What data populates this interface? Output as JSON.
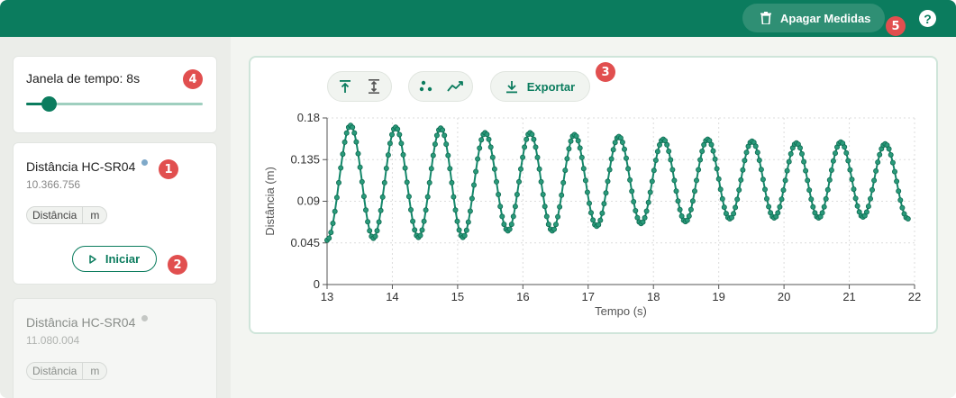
{
  "topbar": {
    "clear_label": "Apagar Medidas",
    "help_label": "?",
    "accent": "#0b7c5e"
  },
  "badges": [
    "1",
    "2",
    "3",
    "4",
    "5"
  ],
  "time_window": {
    "label": "Janela de tempo: 8s",
    "slider_fraction": 0.13
  },
  "sensors": [
    {
      "name": "Distância HC-SR04",
      "id": "10.366.756",
      "quantity": "Distância",
      "unit": "m",
      "status_color": "#7fa9c9",
      "start_label": "Iniciar"
    },
    {
      "name": "Distância HC-SR04",
      "id": "11.080.004",
      "quantity": "Distância",
      "unit": "m",
      "status_color": "#c4c7c4"
    }
  ],
  "toolbar": {
    "export_label": "Exportar",
    "icons": [
      "align-top-icon",
      "fit-vertical-icon",
      "scatter-icon",
      "line-icon",
      "download-icon"
    ]
  },
  "chart_data": {
    "type": "line",
    "xlabel": "Tempo (s)",
    "ylabel": "Distância (m)",
    "xlim": [
      13,
      22
    ],
    "ylim": [
      0,
      0.18
    ],
    "xticks": [
      "13",
      "14",
      "15",
      "16",
      "17",
      "18",
      "19",
      "20",
      "21",
      "22"
    ],
    "yticks": [
      "0",
      "0.045",
      "0.09",
      "0.135",
      "0.18"
    ],
    "grid": true,
    "series_color": "#14876a",
    "peaks": [
      {
        "t": 13.36,
        "v": 0.172
      },
      {
        "t": 14.05,
        "v": 0.17
      },
      {
        "t": 14.74,
        "v": 0.169
      },
      {
        "t": 15.42,
        "v": 0.164
      },
      {
        "t": 16.11,
        "v": 0.164
      },
      {
        "t": 16.79,
        "v": 0.162
      },
      {
        "t": 17.47,
        "v": 0.16
      },
      {
        "t": 18.15,
        "v": 0.157
      },
      {
        "t": 18.83,
        "v": 0.157
      },
      {
        "t": 19.51,
        "v": 0.155
      },
      {
        "t": 20.19,
        "v": 0.153
      },
      {
        "t": 20.87,
        "v": 0.154
      },
      {
        "t": 21.55,
        "v": 0.152
      }
    ],
    "troughs": [
      {
        "t": 13.0,
        "v": 0.048
      },
      {
        "t": 13.71,
        "v": 0.05
      },
      {
        "t": 14.4,
        "v": 0.051
      },
      {
        "t": 15.08,
        "v": 0.051
      },
      {
        "t": 15.77,
        "v": 0.058
      },
      {
        "t": 16.45,
        "v": 0.058
      },
      {
        "t": 17.13,
        "v": 0.063
      },
      {
        "t": 17.81,
        "v": 0.066
      },
      {
        "t": 18.49,
        "v": 0.068
      },
      {
        "t": 19.17,
        "v": 0.071
      },
      {
        "t": 19.85,
        "v": 0.072
      },
      {
        "t": 20.53,
        "v": 0.072
      },
      {
        "t": 21.21,
        "v": 0.073
      },
      {
        "t": 21.9,
        "v": 0.071
      }
    ]
  }
}
